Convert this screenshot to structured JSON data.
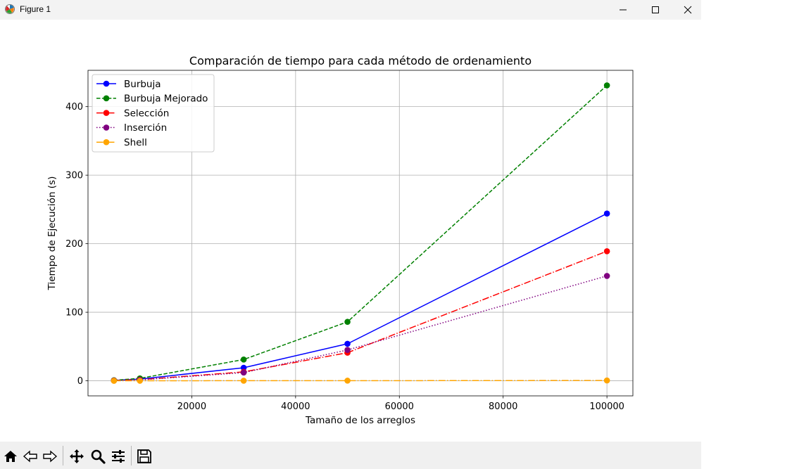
{
  "window": {
    "title": "Figure 1",
    "icons": {
      "app": "matplotlib-figure-icon",
      "minimize": "minimize-icon",
      "maximize": "maximize-icon",
      "close": "close-icon"
    }
  },
  "toolbar": {
    "tools": [
      "home-icon",
      "back-arrow-icon",
      "forward-arrow-icon",
      "pan-icon",
      "zoom-icon",
      "configure-subplots-icon",
      "save-icon"
    ]
  },
  "chart_data": {
    "type": "line",
    "title": "Comparación de tiempo para cada método de ordenamiento",
    "xlabel": "Tamaño de los arreglos",
    "ylabel": "Tiempo de Ejecución (s)",
    "x": [
      5000,
      10000,
      30000,
      50000,
      100000
    ],
    "xlim": [
      0,
      105000
    ],
    "ylim": [
      -22,
      453
    ],
    "xticks": [
      20000,
      40000,
      60000,
      80000,
      100000
    ],
    "yticks": [
      0,
      100,
      200,
      300,
      400
    ],
    "grid": true,
    "legend_position": "upper left",
    "series": [
      {
        "name": "Burbuja",
        "color": "#0000ff",
        "linestyle": "solid",
        "values": [
          0.6,
          2.5,
          19,
          54,
          244
        ]
      },
      {
        "name": "Burbuja Mejorado",
        "color": "#008000",
        "linestyle": "dashed",
        "values": [
          0.8,
          3.5,
          31,
          86,
          431
        ]
      },
      {
        "name": "Selección",
        "color": "#ff0000",
        "linestyle": "dashdot",
        "values": [
          0.4,
          1.6,
          13,
          41,
          189
        ]
      },
      {
        "name": "Inserción",
        "color": "#800080",
        "linestyle": "dotted",
        "values": [
          0.3,
          1.3,
          12,
          45,
          153
        ]
      },
      {
        "name": "Shell",
        "color": "#ffa500",
        "linestyle": "dashdot",
        "values": [
          0.02,
          0.04,
          0.12,
          0.2,
          0.5
        ]
      }
    ]
  }
}
